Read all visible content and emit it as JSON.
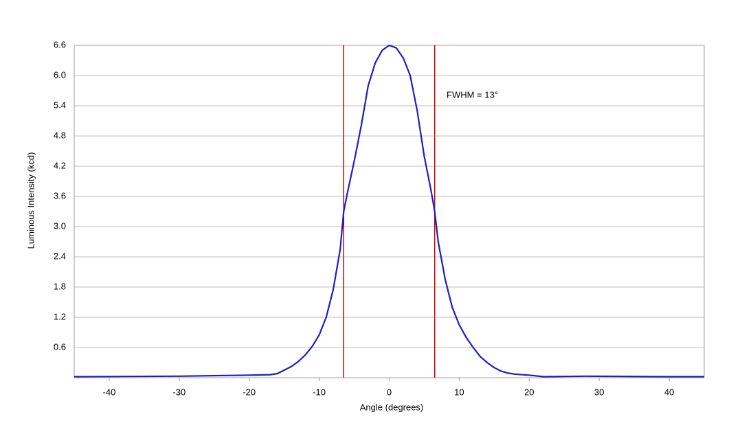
{
  "chart_data": {
    "type": "line",
    "x_label": "Angle (degrees)",
    "y_label": "Luminous Intensity (kcd)",
    "x": [
      -45,
      -30,
      -20,
      -17,
      -16,
      -15,
      -14,
      -13,
      -12,
      -11,
      -10,
      -9,
      -8,
      -7,
      -6.5,
      -6,
      -5,
      -4,
      -3,
      -2,
      -1,
      0,
      1,
      2,
      3,
      4,
      5,
      6,
      6.5,
      7,
      8,
      9,
      10,
      11,
      12,
      13,
      14,
      15,
      16,
      17,
      18,
      20,
      22,
      28,
      40,
      45
    ],
    "series": [
      {
        "color": "#1c1cc8",
        "values": [
          0.02,
          0.03,
          0.05,
          0.06,
          0.08,
          0.15,
          0.22,
          0.32,
          0.45,
          0.62,
          0.85,
          1.2,
          1.75,
          2.55,
          3.3,
          3.65,
          4.3,
          5.0,
          5.8,
          6.25,
          6.5,
          6.6,
          6.55,
          6.35,
          6.0,
          5.3,
          4.4,
          3.7,
          3.3,
          2.7,
          1.95,
          1.4,
          1.05,
          0.8,
          0.6,
          0.42,
          0.3,
          0.2,
          0.13,
          0.09,
          0.07,
          0.05,
          0.02,
          0.03,
          0.02,
          0.02
        ]
      }
    ],
    "vlines": {
      "x": [
        -6.5,
        6.5
      ],
      "color": "#d40000"
    },
    "annotations": [
      {
        "text": "FWHM = 13°"
      }
    ],
    "xlim": [
      -45,
      45
    ],
    "xticks": [
      -40,
      -30,
      -20,
      -10,
      0,
      10,
      20,
      30,
      40
    ],
    "ylim": [
      0,
      6.6
    ],
    "yticks": [
      0.6,
      1.2,
      1.8,
      2.4,
      {
        "value": 3,
        "label": "3.0"
      },
      3.6,
      4.2,
      4.8,
      5.4,
      {
        "value": 6,
        "label": "6.0"
      },
      6.6
    ],
    "grid": true
  }
}
